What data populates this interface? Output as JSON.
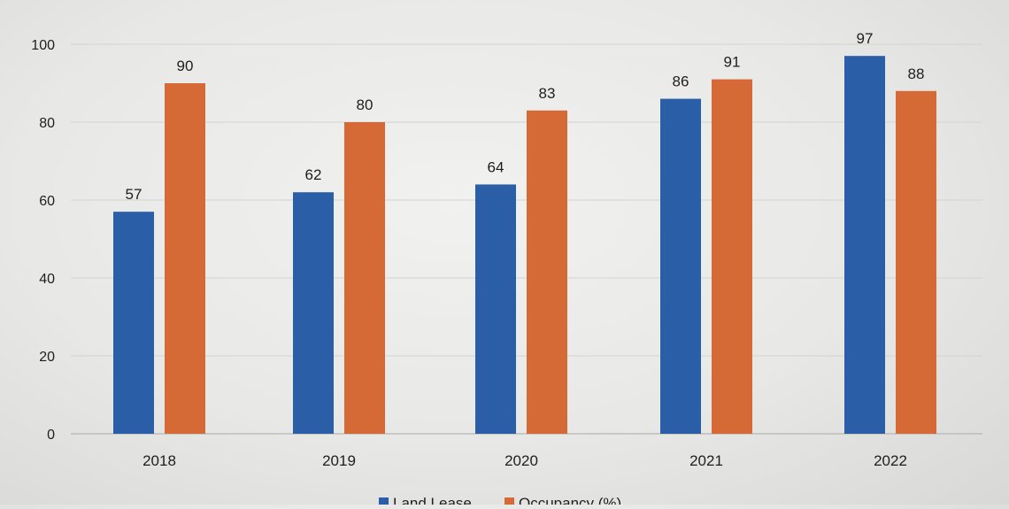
{
  "chart_data": {
    "type": "bar",
    "categories": [
      "2018",
      "2019",
      "2020",
      "2021",
      "2022"
    ],
    "series": [
      {
        "name": "Land Lease",
        "values": [
          57,
          62,
          64,
          86,
          97
        ],
        "color": "#2a5ea6"
      },
      {
        "name": "Occupancy (%)",
        "values": [
          90,
          80,
          83,
          91,
          88
        ],
        "color": "#d66a36"
      }
    ],
    "ylim": [
      0,
      100
    ],
    "yticks": [
      0,
      20,
      40,
      60,
      80,
      100
    ],
    "grid": true,
    "legend": "bottom-center",
    "data_labels": true
  }
}
